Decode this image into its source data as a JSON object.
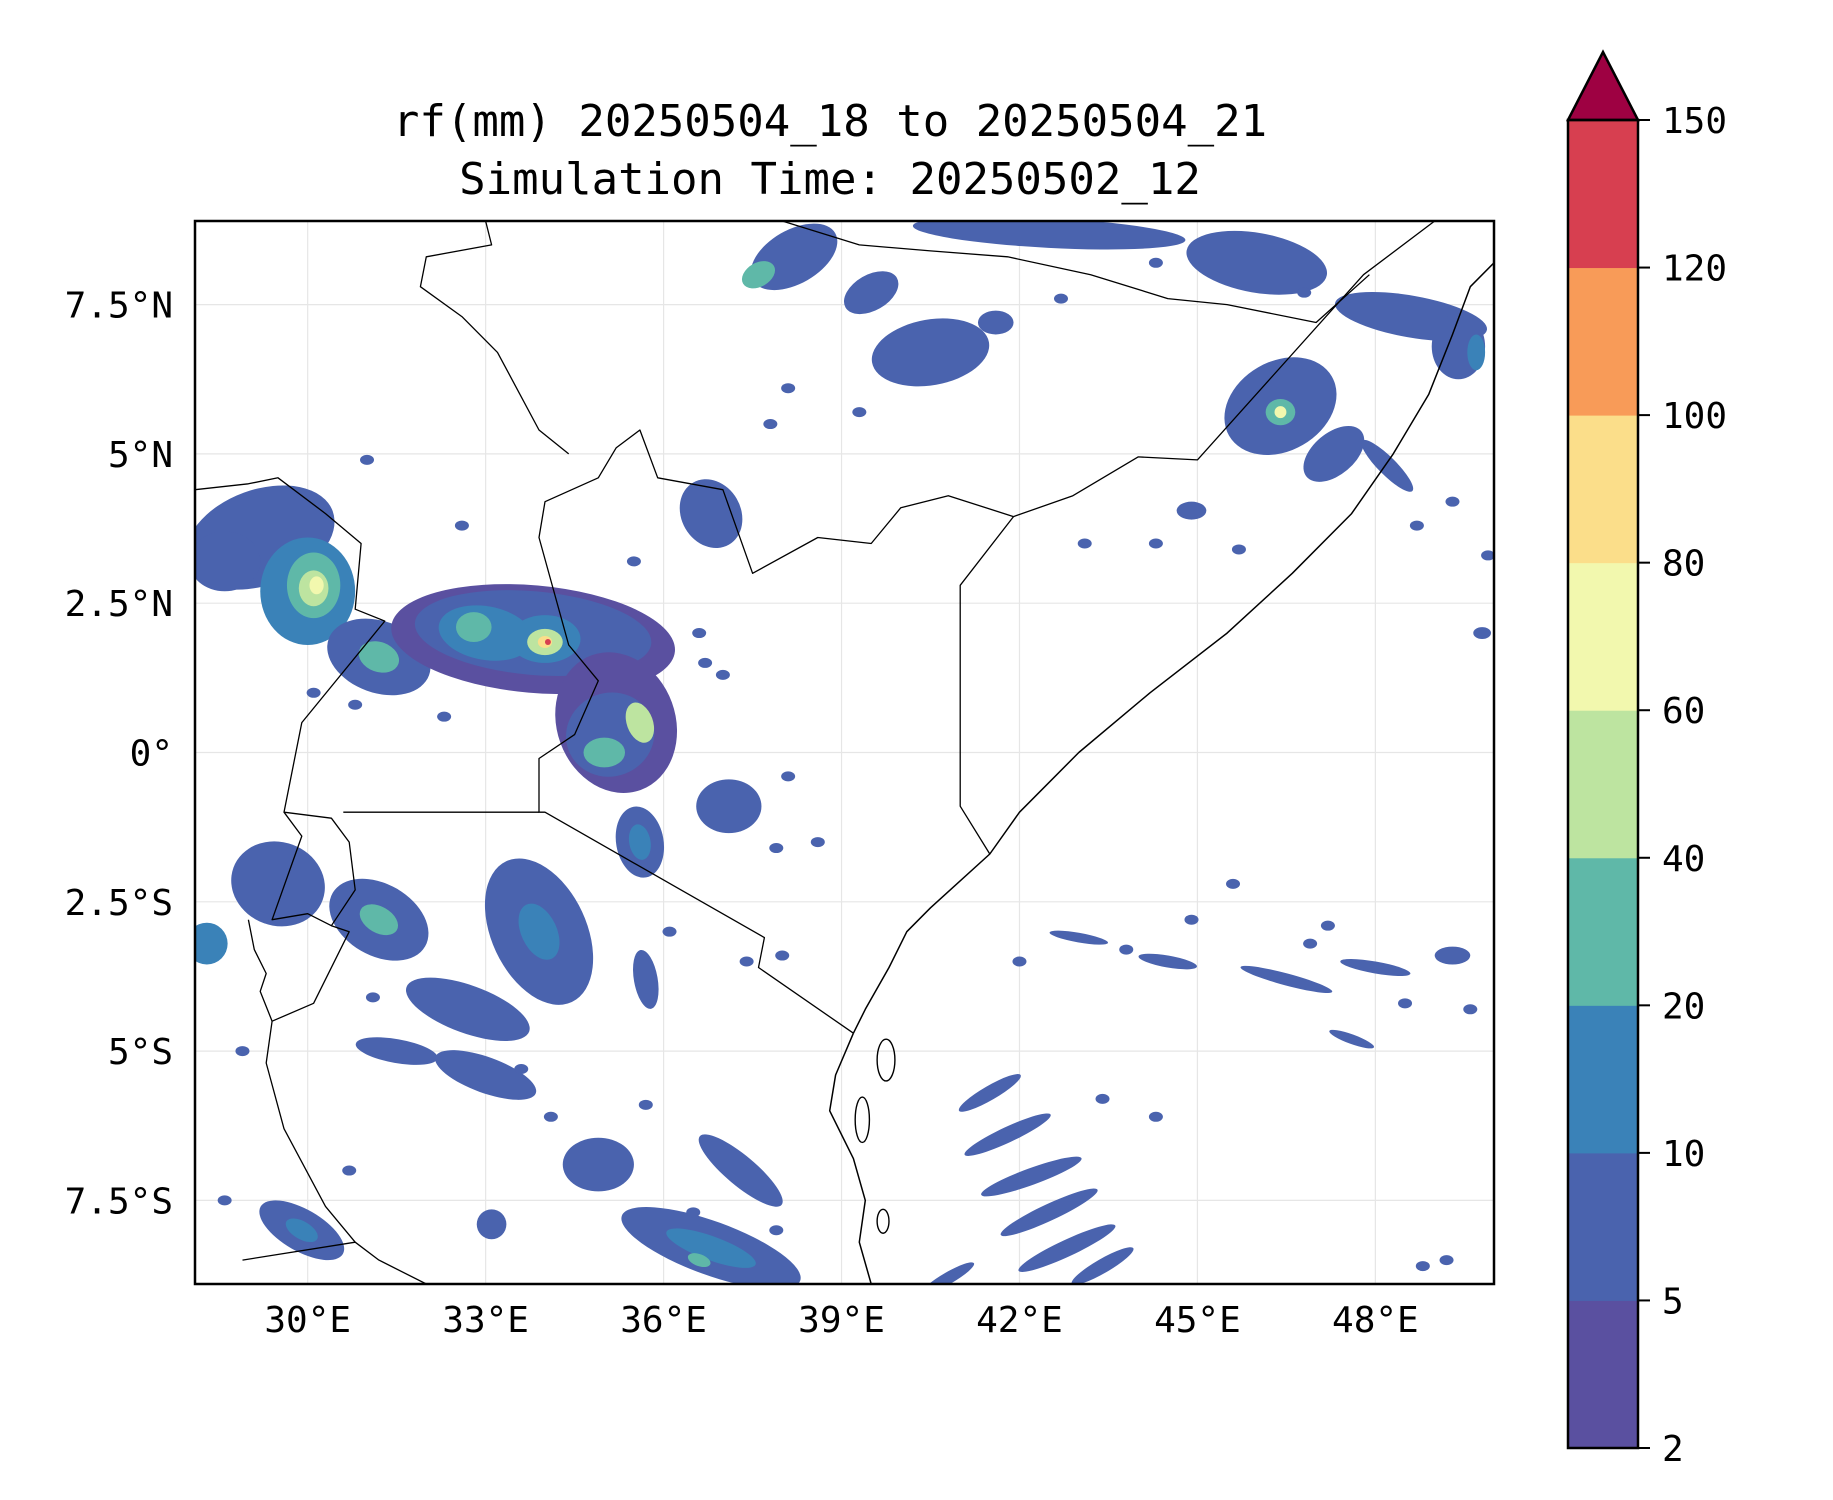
{
  "figure": {
    "title_line1": "rf(mm) 20250504_18 to 20250504_21",
    "title_line2": "Simulation Time: 20250502_12"
  },
  "map": {
    "extent": {
      "lon": [
        28.1,
        50.0
      ],
      "lat": [
        -8.9,
        8.9
      ]
    },
    "gridlines": true,
    "xticks": [
      {
        "value": 30,
        "label": "30°E"
      },
      {
        "value": 33,
        "label": "33°E"
      },
      {
        "value": 36,
        "label": "36°E"
      },
      {
        "value": 39,
        "label": "39°E"
      },
      {
        "value": 42,
        "label": "42°E"
      },
      {
        "value": 45,
        "label": "45°E"
      },
      {
        "value": 48,
        "label": "48°E"
      }
    ],
    "yticks": [
      {
        "value": 7.5,
        "label": "7.5°N"
      },
      {
        "value": 5,
        "label": "5°N"
      },
      {
        "value": 2.5,
        "label": "2.5°N"
      },
      {
        "value": 0,
        "label": "0°"
      },
      {
        "value": -2.5,
        "label": "2.5°S"
      },
      {
        "value": -5,
        "label": "5°S"
      },
      {
        "value": -7.5,
        "label": "7.5°S"
      }
    ],
    "borders": [
      [
        [
          41.9,
          3.95
        ],
        [
          40.8,
          4.3
        ],
        [
          40.0,
          4.1
        ],
        [
          39.5,
          3.5
        ],
        [
          38.6,
          3.6
        ],
        [
          37.5,
          3.0
        ],
        [
          37.0,
          4.4
        ],
        [
          35.9,
          4.6
        ],
        [
          35.6,
          5.4
        ],
        [
          35.2,
          5.1
        ],
        [
          34.9,
          4.6
        ],
        [
          34.0,
          4.2
        ],
        [
          33.9,
          3.6
        ],
        [
          34.4,
          1.8
        ],
        [
          34.9,
          1.2
        ],
        [
          34.5,
          0.3
        ],
        [
          33.9,
          -0.1
        ],
        [
          33.9,
          -1.0
        ],
        [
          34.0,
          -1.0
        ],
        [
          37.7,
          -3.1
        ],
        [
          37.6,
          -3.6
        ],
        [
          39.2,
          -4.7
        ]
      ],
      [
        [
          41.9,
          3.95
        ],
        [
          41.0,
          2.8
        ],
        [
          41.0,
          -0.9
        ],
        [
          41.5,
          -1.7
        ]
      ],
      [
        [
          41.9,
          3.95
        ],
        [
          42.9,
          4.3
        ],
        [
          44.0,
          4.95
        ],
        [
          45.0,
          4.9
        ],
        [
          47.8,
          8.0
        ],
        [
          49.0,
          8.9
        ]
      ],
      [
        [
          28.1,
          4.4
        ],
        [
          29.0,
          4.5
        ],
        [
          29.5,
          4.6
        ],
        [
          30.3,
          4.0
        ],
        [
          30.9,
          3.5
        ],
        [
          30.8,
          2.4
        ],
        [
          31.3,
          2.2
        ],
        [
          29.9,
          0.5
        ],
        [
          29.6,
          -1.0
        ],
        [
          30.4,
          -1.1
        ],
        [
          30.7,
          -1.5
        ],
        [
          30.8,
          -2.3
        ],
        [
          30.4,
          -2.9
        ],
        [
          30.7,
          -3.0
        ],
        [
          30.1,
          -4.2
        ],
        [
          29.4,
          -4.5
        ],
        [
          29.3,
          -5.2
        ],
        [
          29.6,
          -6.3
        ],
        [
          30.3,
          -7.6
        ],
        [
          30.8,
          -8.2
        ]
      ],
      [
        [
          29.6,
          -1.0
        ],
        [
          29.9,
          -1.4
        ],
        [
          29.4,
          -2.8
        ],
        [
          30.0,
          -2.7
        ],
        [
          30.4,
          -2.9
        ]
      ],
      [
        [
          29.0,
          -2.8
        ],
        [
          29.1,
          -3.3
        ],
        [
          29.3,
          -3.7
        ],
        [
          29.2,
          -4.0
        ],
        [
          29.4,
          -4.5
        ]
      ],
      [
        [
          33.9,
          -1.0
        ],
        [
          30.6,
          -1.0
        ]
      ],
      [
        [
          38.0,
          8.9
        ],
        [
          39.3,
          8.5
        ],
        [
          40.5,
          8.4
        ],
        [
          41.8,
          8.3
        ],
        [
          43.2,
          8.0
        ],
        [
          44.5,
          7.6
        ],
        [
          45.5,
          7.5
        ],
        [
          47.0,
          7.2
        ],
        [
          47.9,
          8.0
        ]
      ],
      [
        [
          33.0,
          8.9
        ],
        [
          33.1,
          8.5
        ],
        [
          32.0,
          8.3
        ],
        [
          31.9,
          7.8
        ],
        [
          32.6,
          7.3
        ],
        [
          33.2,
          6.7
        ],
        [
          33.9,
          5.4
        ],
        [
          34.4,
          5.0
        ]
      ],
      [
        [
          28.9,
          -8.5
        ],
        [
          30.8,
          -8.2
        ],
        [
          31.2,
          -8.5
        ],
        [
          32.0,
          -8.9
        ]
      ]
    ],
    "coastline": [
      [
        39.2,
        -4.7
      ],
      [
        39.4,
        -4.3
      ],
      [
        39.8,
        -3.6
      ],
      [
        40.1,
        -3.0
      ],
      [
        40.5,
        -2.6
      ],
      [
        41.5,
        -1.7
      ],
      [
        42.0,
        -1.0
      ],
      [
        43.0,
        0.0
      ],
      [
        44.2,
        1.0
      ],
      [
        45.5,
        2.0
      ],
      [
        46.6,
        3.0
      ],
      [
        47.6,
        4.0
      ],
      [
        48.3,
        5.0
      ],
      [
        48.9,
        6.0
      ],
      [
        49.3,
        7.0
      ],
      [
        49.6,
        7.8
      ],
      [
        50.0,
        8.2
      ]
    ],
    "coastline_south": [
      [
        39.2,
        -4.7
      ],
      [
        38.9,
        -5.4
      ],
      [
        38.8,
        -6.0
      ],
      [
        39.2,
        -6.8
      ],
      [
        39.4,
        -7.5
      ],
      [
        39.3,
        -8.2
      ],
      [
        39.5,
        -8.9
      ]
    ],
    "islands": [
      {
        "name": "",
        "center": [
          39.75,
          -5.15
        ],
        "r": [
          0.15,
          0.35
        ]
      },
      {
        "name": "",
        "center": [
          39.35,
          -6.15
        ],
        "r": [
          0.12,
          0.38
        ]
      },
      {
        "name": "",
        "center": [
          39.7,
          -7.85
        ],
        "r": [
          0.1,
          0.2
        ]
      }
    ]
  },
  "rainfall": {
    "units": "mm",
    "levels": [
      2,
      5,
      10,
      20,
      40,
      60,
      80,
      100,
      120,
      150
    ],
    "extend": "max",
    "colors": [
      "#5a50a0",
      "#4a63ae",
      "#3a82b8",
      "#5fb8a8",
      "#bde4a0",
      "#f2f8ae",
      "#fbde8a",
      "#f89b58",
      "#d73f50",
      "#9e0142"
    ],
    "cells": [
      {
        "lon": 29.2,
        "lat": 3.6,
        "rx": 1.3,
        "ry": 0.8,
        "rot": 20,
        "level": 1
      },
      {
        "lon": 30.0,
        "lat": 2.7,
        "rx": 0.8,
        "ry": 0.9,
        "rot": 0,
        "level": 2
      },
      {
        "lon": 30.1,
        "lat": 2.8,
        "rx": 0.45,
        "ry": 0.55,
        "rot": 0,
        "level": 3
      },
      {
        "lon": 30.1,
        "lat": 2.75,
        "rx": 0.25,
        "ry": 0.3,
        "rot": 0,
        "level": 4
      },
      {
        "lon": 30.15,
        "lat": 2.8,
        "rx": 0.12,
        "ry": 0.15,
        "rot": 0,
        "level": 5
      },
      {
        "lon": 28.6,
        "lat": 3.2,
        "rx": 0.6,
        "ry": 0.5,
        "rot": 0,
        "level": 1
      },
      {
        "lon": 31.2,
        "lat": 1.6,
        "rx": 0.9,
        "ry": 0.6,
        "rot": -20,
        "level": 1
      },
      {
        "lon": 31.2,
        "lat": 1.6,
        "rx": 0.35,
        "ry": 0.25,
        "rot": -20,
        "level": 3
      },
      {
        "lon": 33.8,
        "lat": 1.9,
        "rx": 2.4,
        "ry": 0.9,
        "rot": -5,
        "level": 0
      },
      {
        "lon": 33.8,
        "lat": 2.0,
        "rx": 2.0,
        "ry": 0.7,
        "rot": -5,
        "level": 1
      },
      {
        "lon": 33.0,
        "lat": 2.0,
        "rx": 0.8,
        "ry": 0.45,
        "rot": -10,
        "level": 2
      },
      {
        "lon": 32.8,
        "lat": 2.1,
        "rx": 0.3,
        "ry": 0.25,
        "rot": 0,
        "level": 3
      },
      {
        "lon": 34.0,
        "lat": 1.9,
        "rx": 0.6,
        "ry": 0.4,
        "rot": 0,
        "level": 2
      },
      {
        "lon": 34.0,
        "lat": 1.85,
        "rx": 0.3,
        "ry": 0.22,
        "rot": 0,
        "level": 4
      },
      {
        "lon": 34.0,
        "lat": 1.85,
        "rx": 0.12,
        "ry": 0.1,
        "rot": 0,
        "level": 6
      },
      {
        "lon": 34.05,
        "lat": 1.85,
        "rx": 0.05,
        "ry": 0.05,
        "rot": 0,
        "level": 8
      },
      {
        "lon": 35.2,
        "lat": 0.5,
        "rx": 1.0,
        "ry": 1.2,
        "rot": 20,
        "level": 0
      },
      {
        "lon": 35.1,
        "lat": 0.3,
        "rx": 0.75,
        "ry": 0.7,
        "rot": 20,
        "level": 1
      },
      {
        "lon": 35.0,
        "lat": 0.0,
        "rx": 0.35,
        "ry": 0.25,
        "rot": 0,
        "level": 3
      },
      {
        "lon": 35.6,
        "lat": 0.5,
        "rx": 0.22,
        "ry": 0.35,
        "rot": 20,
        "level": 4
      },
      {
        "lon": 35.6,
        "lat": -1.5,
        "rx": 0.4,
        "ry": 0.6,
        "rot": 10,
        "level": 1
      },
      {
        "lon": 35.6,
        "lat": -1.5,
        "rx": 0.18,
        "ry": 0.3,
        "rot": 10,
        "level": 2
      },
      {
        "lon": 37.1,
        "lat": -0.9,
        "rx": 0.55,
        "ry": 0.45,
        "rot": 0,
        "level": 1
      },
      {
        "lon": 36.8,
        "lat": 4.0,
        "rx": 0.5,
        "ry": 0.6,
        "rot": 30,
        "level": 1
      },
      {
        "lon": 29.5,
        "lat": -2.2,
        "rx": 0.8,
        "ry": 0.7,
        "rot": -20,
        "level": 1
      },
      {
        "lon": 31.2,
        "lat": -2.8,
        "rx": 0.9,
        "ry": 0.6,
        "rot": -30,
        "level": 1
      },
      {
        "lon": 31.2,
        "lat": -2.8,
        "rx": 0.35,
        "ry": 0.22,
        "rot": -30,
        "level": 3
      },
      {
        "lon": 28.3,
        "lat": -3.2,
        "rx": 0.35,
        "ry": 0.35,
        "rot": 0,
        "level": 2
      },
      {
        "lon": 33.9,
        "lat": -3.0,
        "rx": 0.8,
        "ry": 1.3,
        "rot": 25,
        "level": 1
      },
      {
        "lon": 33.9,
        "lat": -3.0,
        "rx": 0.3,
        "ry": 0.5,
        "rot": 25,
        "level": 2
      },
      {
        "lon": 32.7,
        "lat": -4.3,
        "rx": 1.1,
        "ry": 0.4,
        "rot": -20,
        "level": 1
      },
      {
        "lon": 33.0,
        "lat": -5.4,
        "rx": 0.9,
        "ry": 0.3,
        "rot": -20,
        "level": 1
      },
      {
        "lon": 31.5,
        "lat": -5.0,
        "rx": 0.7,
        "ry": 0.2,
        "rot": -10,
        "level": 1
      },
      {
        "lon": 35.7,
        "lat": -3.8,
        "rx": 0.2,
        "ry": 0.5,
        "rot": 10,
        "level": 1
      },
      {
        "lon": 33.1,
        "lat": -7.9,
        "rx": 0.25,
        "ry": 0.25,
        "rot": 0,
        "level": 1
      },
      {
        "lon": 29.9,
        "lat": -8.0,
        "rx": 0.8,
        "ry": 0.35,
        "rot": -30,
        "level": 1
      },
      {
        "lon": 29.9,
        "lat": -8.0,
        "rx": 0.3,
        "ry": 0.15,
        "rot": -30,
        "level": 2
      },
      {
        "lon": 34.9,
        "lat": -6.9,
        "rx": 0.6,
        "ry": 0.45,
        "rot": 0,
        "level": 1
      },
      {
        "lon": 36.8,
        "lat": -8.3,
        "rx": 1.6,
        "ry": 0.45,
        "rot": -20,
        "level": 1
      },
      {
        "lon": 36.8,
        "lat": -8.3,
        "rx": 0.8,
        "ry": 0.2,
        "rot": -20,
        "level": 2
      },
      {
        "lon": 36.6,
        "lat": -8.5,
        "rx": 0.2,
        "ry": 0.1,
        "rot": -20,
        "level": 3
      },
      {
        "lon": 37.3,
        "lat": -7.0,
        "rx": 0.9,
        "ry": 0.25,
        "rot": -40,
        "level": 1
      },
      {
        "lon": 38.2,
        "lat": 8.3,
        "rx": 0.8,
        "ry": 0.45,
        "rot": 30,
        "level": 1
      },
      {
        "lon": 37.6,
        "lat": 8.0,
        "rx": 0.3,
        "ry": 0.2,
        "rot": 30,
        "level": 3
      },
      {
        "lon": 40.5,
        "lat": 6.7,
        "rx": 1.0,
        "ry": 0.55,
        "rot": 10,
        "level": 1
      },
      {
        "lon": 41.6,
        "lat": 7.2,
        "rx": 0.3,
        "ry": 0.2,
        "rot": 0,
        "level": 1
      },
      {
        "lon": 39.5,
        "lat": 7.7,
        "rx": 0.5,
        "ry": 0.3,
        "rot": 30,
        "level": 1
      },
      {
        "lon": 42.5,
        "lat": 8.7,
        "rx": 2.3,
        "ry": 0.25,
        "rot": -3,
        "level": 1
      },
      {
        "lon": 46.0,
        "lat": 8.2,
        "rx": 1.2,
        "ry": 0.5,
        "rot": -10,
        "level": 1
      },
      {
        "lon": 46.4,
        "lat": 5.8,
        "rx": 1.0,
        "ry": 0.75,
        "rot": 30,
        "level": 1
      },
      {
        "lon": 46.4,
        "lat": 5.7,
        "rx": 0.25,
        "ry": 0.22,
        "rot": 0,
        "level": 3
      },
      {
        "lon": 46.4,
        "lat": 5.7,
        "rx": 0.1,
        "ry": 0.1,
        "rot": 0,
        "level": 5
      },
      {
        "lon": 47.3,
        "lat": 5.0,
        "rx": 0.6,
        "ry": 0.35,
        "rot": 40,
        "level": 1
      },
      {
        "lon": 48.6,
        "lat": 7.3,
        "rx": 1.3,
        "ry": 0.35,
        "rot": -10,
        "level": 1
      },
      {
        "lon": 49.4,
        "lat": 6.8,
        "rx": 0.45,
        "ry": 0.55,
        "rot": 0,
        "level": 1
      },
      {
        "lon": 49.7,
        "lat": 6.7,
        "rx": 0.15,
        "ry": 0.3,
        "rot": 0,
        "level": 2
      },
      {
        "lon": 48.2,
        "lat": 4.8,
        "rx": 0.6,
        "ry": 0.15,
        "rot": -45,
        "level": 1
      },
      {
        "lon": 44.9,
        "lat": 4.05,
        "rx": 0.25,
        "ry": 0.15,
        "rot": 0,
        "level": 1
      },
      {
        "lon": 49.8,
        "lat": 2.0,
        "rx": 0.15,
        "ry": 0.1,
        "rot": 0,
        "level": 1
      },
      {
        "lon": 41.5,
        "lat": -5.7,
        "rx": 0.6,
        "ry": 0.12,
        "rot": 30,
        "level": 1
      },
      {
        "lon": 41.8,
        "lat": -6.4,
        "rx": 0.8,
        "ry": 0.13,
        "rot": 25,
        "level": 1
      },
      {
        "lon": 42.2,
        "lat": -7.1,
        "rx": 0.9,
        "ry": 0.14,
        "rot": 20,
        "level": 1
      },
      {
        "lon": 42.5,
        "lat": -7.7,
        "rx": 0.9,
        "ry": 0.14,
        "rot": 25,
        "level": 1
      },
      {
        "lon": 42.8,
        "lat": -8.3,
        "rx": 0.9,
        "ry": 0.14,
        "rot": 25,
        "level": 1
      },
      {
        "lon": 43.4,
        "lat": -8.6,
        "rx": 0.6,
        "ry": 0.12,
        "rot": 30,
        "level": 1
      },
      {
        "lon": 40.8,
        "lat": -8.8,
        "rx": 0.5,
        "ry": 0.1,
        "rot": 30,
        "level": 1
      },
      {
        "lon": 44.5,
        "lat": -3.5,
        "rx": 0.5,
        "ry": 0.1,
        "rot": -10,
        "level": 1
      },
      {
        "lon": 46.5,
        "lat": -3.8,
        "rx": 0.8,
        "ry": 0.1,
        "rot": -15,
        "level": 1
      },
      {
        "lon": 48.0,
        "lat": -3.6,
        "rx": 0.6,
        "ry": 0.1,
        "rot": -10,
        "level": 1
      },
      {
        "lon": 49.3,
        "lat": -3.4,
        "rx": 0.3,
        "ry": 0.15,
        "rot": 0,
        "level": 1
      },
      {
        "lon": 43.0,
        "lat": -3.1,
        "rx": 0.5,
        "ry": 0.08,
        "rot": -10,
        "level": 1
      },
      {
        "lon": 47.6,
        "lat": -4.8,
        "rx": 0.4,
        "ry": 0.08,
        "rot": -20,
        "level": 1
      }
    ],
    "specks": [
      [
        31.0,
        4.9
      ],
      [
        32.6,
        3.8
      ],
      [
        35.5,
        3.2
      ],
      [
        38.1,
        6.1
      ],
      [
        37.8,
        5.5
      ],
      [
        39.3,
        5.7
      ],
      [
        36.6,
        2.0
      ],
      [
        36.7,
        1.5
      ],
      [
        37.0,
        1.3
      ],
      [
        38.1,
        -0.4
      ],
      [
        38.6,
        -1.5
      ],
      [
        37.9,
        -1.6
      ],
      [
        38.0,
        -3.4
      ],
      [
        37.4,
        -3.5
      ],
      [
        36.1,
        -3.0
      ],
      [
        30.1,
        1.0
      ],
      [
        30.8,
        0.8
      ],
      [
        32.3,
        0.6
      ],
      [
        28.9,
        -5.0
      ],
      [
        28.6,
        -7.5
      ],
      [
        30.7,
        -7.0
      ],
      [
        31.1,
        -4.1
      ],
      [
        33.6,
        -5.3
      ],
      [
        36.5,
        -7.7
      ],
      [
        37.9,
        -8.0
      ],
      [
        34.1,
        -6.1
      ],
      [
        35.7,
        -5.9
      ],
      [
        43.1,
        3.5
      ],
      [
        44.3,
        3.5
      ],
      [
        45.7,
        3.4
      ],
      [
        49.9,
        3.3
      ],
      [
        48.7,
        3.8
      ],
      [
        49.3,
        4.2
      ],
      [
        46.8,
        7.7
      ],
      [
        44.3,
        8.2
      ],
      [
        42.7,
        7.6
      ],
      [
        45.6,
        -2.2
      ],
      [
        44.9,
        -2.8
      ],
      [
        43.8,
        -3.3
      ],
      [
        46.9,
        -3.2
      ],
      [
        48.5,
        -4.2
      ],
      [
        49.6,
        -4.3
      ],
      [
        44.3,
        -6.1
      ],
      [
        43.4,
        -5.8
      ],
      [
        48.8,
        -8.6
      ],
      [
        49.2,
        -8.5
      ],
      [
        47.2,
        -2.9
      ],
      [
        42.0,
        -3.5
      ]
    ]
  },
  "colorbar": {
    "tick_labels": [
      "2",
      "5",
      "10",
      "20",
      "40",
      "60",
      "80",
      "100",
      "120",
      "150"
    ]
  }
}
